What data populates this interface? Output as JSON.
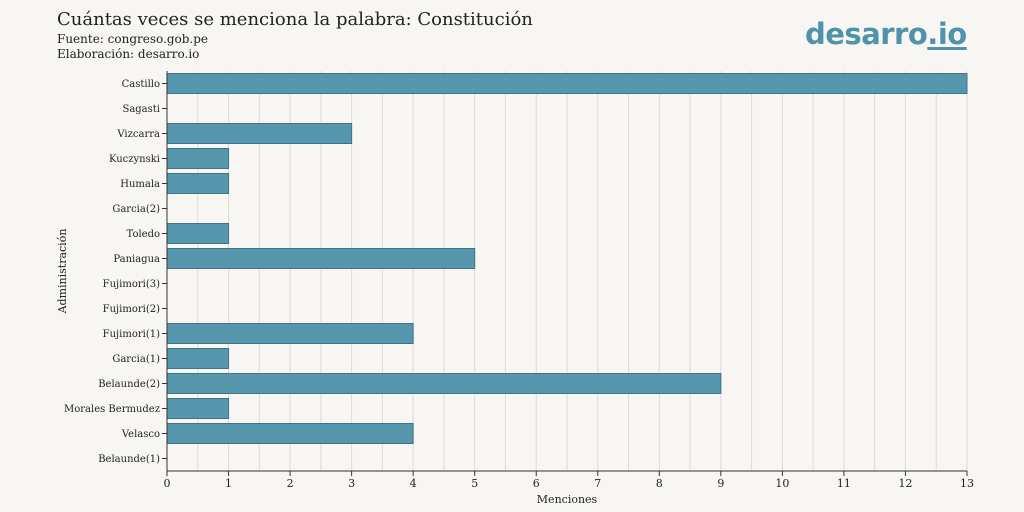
{
  "header": {
    "title": "Cuántas veces se menciona la palabra: Constitución",
    "source": "Fuente: congreso.gob.pe",
    "credit": "Elaboración: desarro.io"
  },
  "logo": {
    "name": "desarro",
    "tld": ".io"
  },
  "colors": {
    "bar": "#5797ae",
    "bar_stroke": "#3f7487",
    "grid": "#dddbd6",
    "axis": "#333333",
    "background": "#f7f6f3"
  },
  "chart_data": {
    "type": "bar",
    "orientation": "horizontal",
    "categories": [
      "Castillo",
      "Sagasti",
      "Vizcarra",
      "Kuczynski",
      "Humala",
      "Garcia(2)",
      "Toledo",
      "Paniagua",
      "Fujimori(3)",
      "Fujimori(2)",
      "Fujimori(1)",
      "Garcia(1)",
      "Belaunde(2)",
      "Morales Bermudez",
      "Velasco",
      "Belaunde(1)"
    ],
    "values": [
      13,
      0,
      3,
      1,
      1,
      0,
      1,
      5,
      0,
      0,
      4,
      1,
      9,
      1,
      4,
      0
    ],
    "xlabel": "Menciones",
    "ylabel": "Administración",
    "xlim": [
      0,
      13
    ],
    "xticks": [
      0,
      1,
      2,
      3,
      4,
      5,
      6,
      7,
      8,
      9,
      10,
      11,
      12,
      13
    ],
    "grid": "vertical"
  }
}
